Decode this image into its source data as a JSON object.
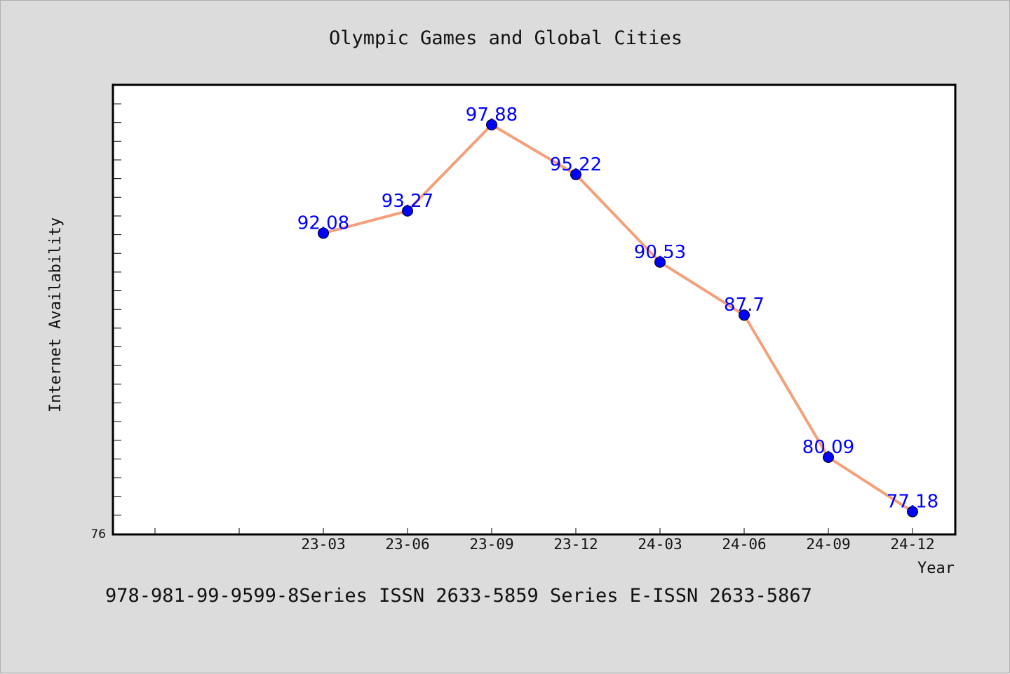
{
  "chart_data": {
    "type": "line",
    "title": "Olympic Games and Global Cities",
    "xlabel": "Year",
    "ylabel": "Internet Availability",
    "categories": [
      "23-03",
      "23-06",
      "23-09",
      "23-12",
      "24-03",
      "24-06",
      "24-09",
      "24-12"
    ],
    "series": [
      {
        "values": [
          92.08,
          93.27,
          97.88,
          95.22,
          90.53,
          87.7,
          80.09,
          77.18
        ]
      }
    ],
    "y_axis_min_label": "76",
    "ylim": [
      76,
      100
    ],
    "grid": false,
    "line_color": "#f4a07a",
    "marker_color": "#0000ff",
    "label_color": "#0000ff"
  },
  "footer": {
    "note": "978-981-99-9599-8Series ISSN 2633-5859 Series E-ISSN 2633-5867"
  }
}
